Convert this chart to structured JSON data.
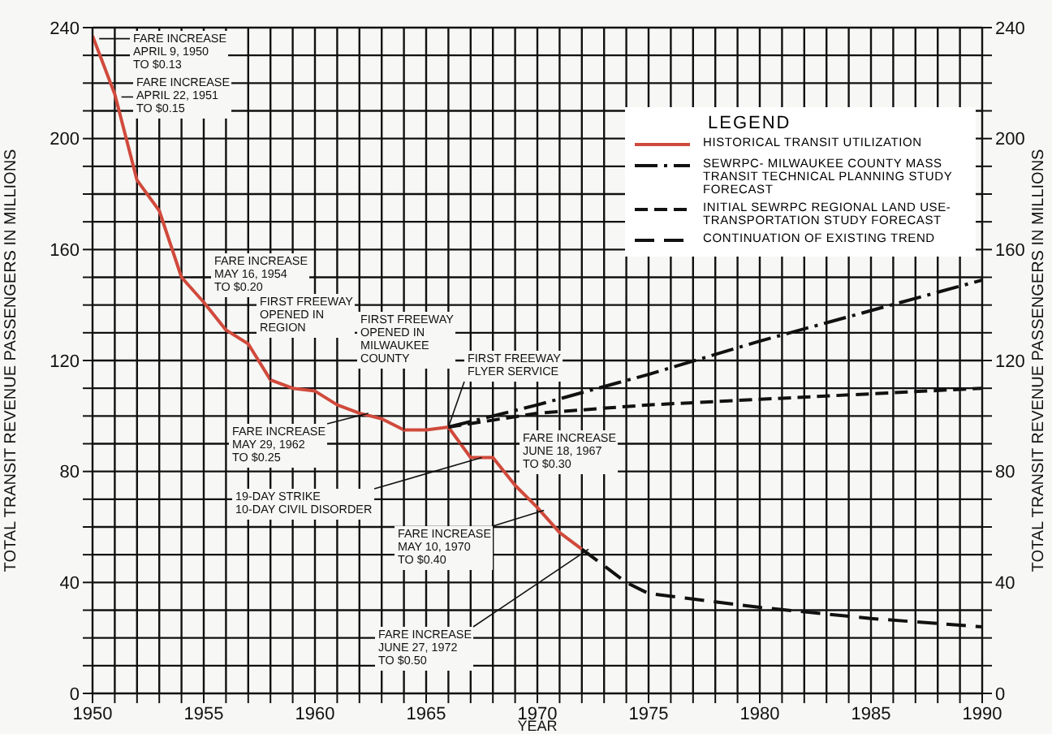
{
  "chart_data": {
    "type": "line",
    "xlabel": "YEAR",
    "ylabel": "TOTAL TRANSIT REVENUE PASSENGERS IN MILLIONS",
    "y2label": "TOTAL TRANSIT REVENUE PASSENGERS IN MILLIONS",
    "legend_title": "LEGEND",
    "xlim": [
      1950,
      1990
    ],
    "xticks": [
      1950,
      {
        "value": 1951,
        "label": null
      },
      {
        "value": 1952,
        "label": null
      },
      {
        "value": 1953,
        "label": null
      },
      {
        "value": 1954,
        "label": null
      },
      1955,
      {
        "value": 1956,
        "label": null
      },
      {
        "value": 1957,
        "label": null
      },
      {
        "value": 1958,
        "label": null
      },
      {
        "value": 1959,
        "label": null
      },
      1960,
      {
        "value": 1961,
        "label": null
      },
      {
        "value": 1962,
        "label": null
      },
      {
        "value": 1963,
        "label": null
      },
      {
        "value": 1964,
        "label": null
      },
      1965,
      {
        "value": 1966,
        "label": null
      },
      {
        "value": 1967,
        "label": null
      },
      {
        "value": 1968,
        "label": null
      },
      {
        "value": 1969,
        "label": null
      },
      1970,
      {
        "value": 1971,
        "label": null
      },
      {
        "value": 1972,
        "label": null
      },
      {
        "value": 1973,
        "label": null
      },
      {
        "value": 1974,
        "label": null
      },
      1975,
      {
        "value": 1976,
        "label": null
      },
      {
        "value": 1977,
        "label": null
      },
      {
        "value": 1978,
        "label": null
      },
      {
        "value": 1979,
        "label": null
      },
      1980,
      {
        "value": 1981,
        "label": null
      },
      {
        "value": 1982,
        "label": null
      },
      {
        "value": 1983,
        "label": null
      },
      {
        "value": 1984,
        "label": null
      },
      1985,
      {
        "value": 1986,
        "label": null
      },
      {
        "value": 1987,
        "label": null
      },
      {
        "value": 1988,
        "label": null
      },
      {
        "value": 1989,
        "label": null
      },
      1990
    ],
    "ylim": [
      0,
      240
    ],
    "yticks": [
      0,
      {
        "value": 10,
        "label": null
      },
      {
        "value": 20,
        "label": null
      },
      {
        "value": 30,
        "label": null
      },
      40,
      {
        "value": 50,
        "label": null
      },
      {
        "value": 60,
        "label": null
      },
      {
        "value": 70,
        "label": null
      },
      80,
      {
        "value": 90,
        "label": null
      },
      {
        "value": 100,
        "label": null
      },
      {
        "value": 110,
        "label": null
      },
      120,
      {
        "value": 130,
        "label": null
      },
      {
        "value": 140,
        "label": null
      },
      {
        "value": 150,
        "label": null
      },
      160,
      {
        "value": 170,
        "label": null
      },
      {
        "value": 180,
        "label": null
      },
      {
        "value": 190,
        "label": null
      },
      200,
      {
        "value": 210,
        "label": null
      },
      {
        "value": 220,
        "label": null
      },
      {
        "value": 230,
        "label": null
      },
      240
    ],
    "y2lim": [
      0,
      240
    ],
    "y2ticks": [
      0,
      {
        "value": 10,
        "label": null
      },
      {
        "value": 20,
        "label": null
      },
      {
        "value": 30,
        "label": null
      },
      40,
      {
        "value": 50,
        "label": null
      },
      {
        "value": 60,
        "label": null
      },
      {
        "value": 70,
        "label": null
      },
      80,
      {
        "value": 90,
        "label": null
      },
      {
        "value": 100,
        "label": null
      },
      {
        "value": 110,
        "label": null
      },
      120,
      {
        "value": 130,
        "label": null
      },
      {
        "value": 140,
        "label": null
      },
      {
        "value": 150,
        "label": null
      },
      160,
      {
        "value": 170,
        "label": null
      },
      {
        "value": 180,
        "label": null
      },
      {
        "value": 190,
        "label": null
      },
      200,
      {
        "value": 210,
        "label": null
      },
      {
        "value": 220,
        "label": null
      },
      {
        "value": 230,
        "label": null
      },
      240
    ],
    "grid": true,
    "legend": "top right",
    "series": [
      {
        "name": "HISTORICAL TRANSIT UTILIZATION",
        "color": "#d04a3c",
        "line_style": "solid",
        "x": [
          1950,
          1951,
          1952,
          1953,
          1954,
          1955,
          1956,
          1957,
          1958,
          1959,
          1960,
          1961,
          1962,
          1963,
          1964,
          1965,
          1966,
          1967,
          1968,
          1969,
          1970,
          1971,
          1972
        ],
        "values": [
          237,
          216,
          185,
          174,
          150,
          141,
          131,
          126,
          113,
          110,
          109,
          104,
          101,
          99,
          95,
          95,
          96,
          85,
          85,
          75,
          67,
          58,
          52
        ]
      },
      {
        "name": "SEWRPC- MILWAUKEE COUNTY MASS TRANSIT TECHNICAL PLANNING STUDY FORECAST",
        "color": "#111111",
        "line_style": "dashed",
        "x": [
          1966,
          1970,
          1975,
          1980,
          1985,
          1990
        ],
        "values": [
          96,
          104,
          115,
          127,
          138,
          149
        ]
      },
      {
        "name": "INITIAL SEWRPC REGIONAL LAND USE-TRANSPORTATION STUDY FORECAST",
        "color": "#111111",
        "line_style": "dashed",
        "x": [
          1966,
          1970,
          1975,
          1980,
          1985,
          1990
        ],
        "values": [
          96,
          101,
          104,
          106,
          108,
          110
        ]
      },
      {
        "name": "CONTINUATION OF EXISTING TREND",
        "color": "#111111",
        "line_style": "dashed",
        "x": [
          1972,
          1973,
          1974,
          1975,
          1980,
          1985,
          1990
        ],
        "values": [
          52,
          46,
          40,
          36,
          31,
          27,
          24
        ]
      }
    ],
    "annotations": [
      {
        "text": "FARE INCREASE\nAPRIL 9, 1950\nTO $0.13",
        "x": 1950.3,
        "y": 236
      },
      {
        "text": "FARE INCREASE\nAPRIL 22, 1951\nTO $0.15",
        "x": 1951.3,
        "y": 215
      },
      {
        "text": "FARE INCREASE\nMAY 16, 1954\nTO $0.20",
        "x": 1954.4,
        "y": 150
      },
      {
        "text": "FIRST FREEWAY\nOPENED IN\nREGION",
        "x": 1958,
        "y": 113
      },
      {
        "text": "FIRST FREEWAY\nOPENED IN\nMILWAUKEE\nCOUNTY",
        "x": 1964,
        "y": 95
      },
      {
        "text": "FIRST FREEWAY\nFLYER SERVICE",
        "x": 1966,
        "y": 96
      },
      {
        "text": "FARE INCREASE\nMAY 29, 1962\nTO $0.25",
        "x": 1962.4,
        "y": 101
      },
      {
        "text": "19-DAY STRIKE\n10-DAY CIVIL DISORDER",
        "x": 1967.5,
        "y": 85
      },
      {
        "text": "FARE INCREASE\nJUNE 18, 1967\nTO $0.30",
        "x": 1966.5,
        "y": 90
      },
      {
        "text": "FARE INCREASE\nMAY 10, 1970\nTO $0.40",
        "x": 1970.3,
        "y": 66
      },
      {
        "text": "FARE INCREASE\nJUNE 27, 1972\nTO $0.50",
        "x": 1972.3,
        "y": 52
      }
    ]
  }
}
